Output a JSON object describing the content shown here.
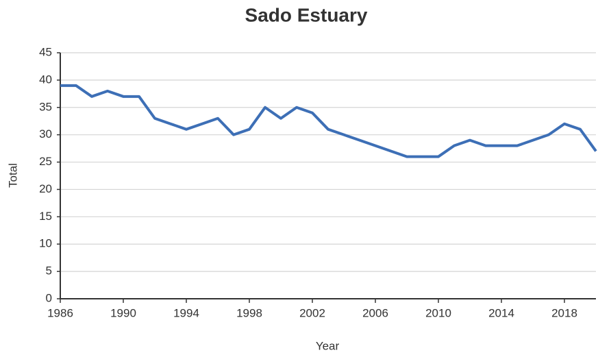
{
  "chart_data": {
    "type": "line",
    "title": "Sado Estuary",
    "x_label": "Year",
    "y_label": "Total",
    "x": [
      1986,
      1987,
      1988,
      1989,
      1990,
      1991,
      1992,
      1993,
      1994,
      1995,
      1996,
      1997,
      1998,
      1999,
      2000,
      2001,
      2002,
      2003,
      2004,
      2005,
      2006,
      2007,
      2008,
      2009,
      2010,
      2011,
      2012,
      2013,
      2014,
      2015,
      2016,
      2017,
      2018,
      2019,
      2020
    ],
    "series": [
      {
        "name": "Total",
        "color": "#3d6fb6",
        "values": [
          39,
          39,
          37,
          38,
          37,
          37,
          33,
          32,
          31,
          32,
          33,
          30,
          31,
          35,
          33,
          35,
          34,
          31,
          30,
          29,
          28,
          27,
          26,
          26,
          26,
          28,
          29,
          28,
          28,
          28,
          29,
          30,
          32,
          31,
          27
        ]
      }
    ],
    "xlim": [
      1986,
      2020
    ],
    "xticks": [
      1986,
      1990,
      1994,
      1998,
      2002,
      2006,
      2010,
      2014,
      2018
    ],
    "ylim": [
      0,
      45
    ],
    "yticks": [
      0,
      5,
      10,
      15,
      20,
      25,
      30,
      35,
      40,
      45
    ],
    "grid": true
  }
}
